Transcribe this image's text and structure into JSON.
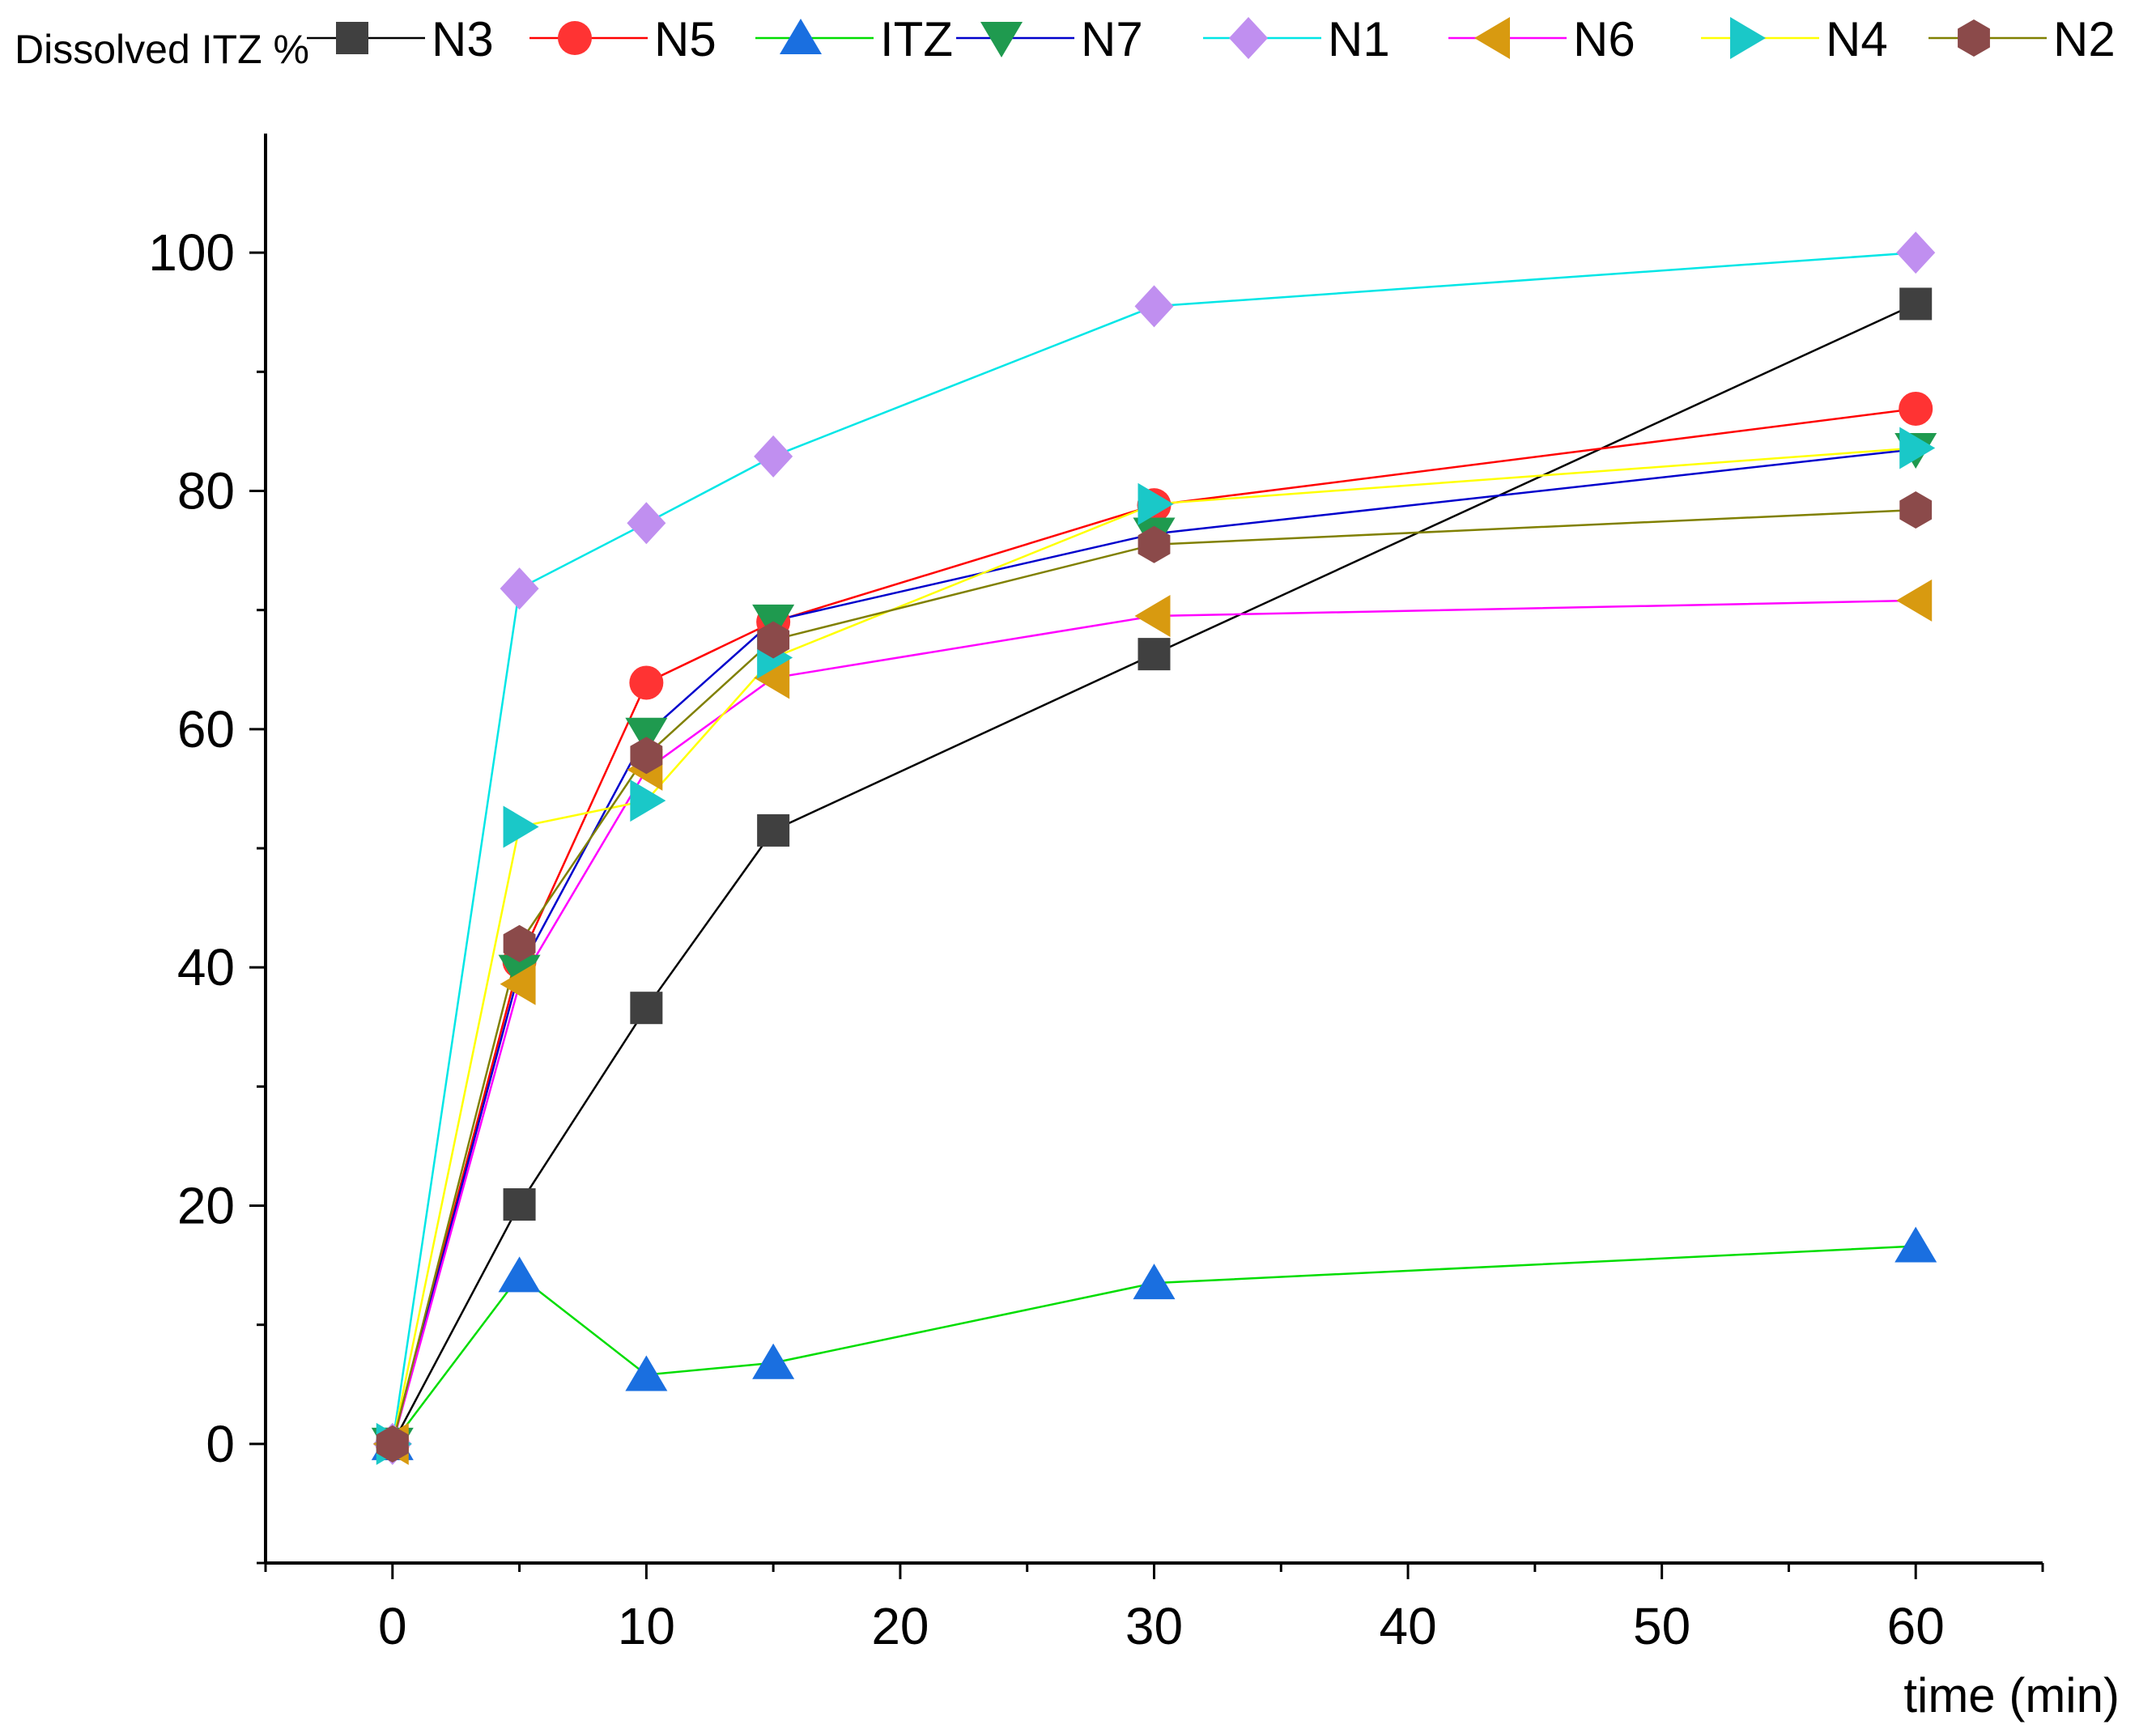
{
  "chart_data": {
    "type": "line",
    "title": "",
    "ylabel": "Dissolved ITZ %",
    "xlabel": "time (min)",
    "xlim": [
      -5,
      65
    ],
    "ylim": [
      -10,
      110
    ],
    "xticks": [
      0,
      10,
      20,
      30,
      40,
      50,
      60
    ],
    "yticks": [
      0,
      20,
      40,
      60,
      80,
      100
    ],
    "x_tick_labels": [
      "0",
      "10",
      "20",
      "30",
      "40",
      "50",
      "60"
    ],
    "y_tick_labels": [
      "0",
      "20",
      "40",
      "60",
      "80",
      "100"
    ],
    "grid": false,
    "legend_position": "top",
    "x": [
      0,
      5,
      10,
      15,
      30,
      60
    ],
    "series": [
      {
        "name": "N3",
        "line_color": "#000000",
        "marker_color": "#404040",
        "marker": "square",
        "values": [
          0,
          20.1,
          36.6,
          51.5,
          66.3,
          95.7
        ]
      },
      {
        "name": "N5",
        "line_color": "#ff0000",
        "marker_color": "#ff3333",
        "marker": "circle",
        "values": [
          0,
          40.5,
          63.9,
          69.0,
          78.8,
          86.9
        ]
      },
      {
        "name": "ITZ",
        "line_color": "#00dd00",
        "marker_color": "#1a6fe0",
        "marker": "triangle-up",
        "values": [
          0,
          14.1,
          5.8,
          6.8,
          13.5,
          16.6
        ]
      },
      {
        "name": "N7",
        "line_color": "#0000cc",
        "marker_color": "#1f9a4f",
        "marker": "triangle-down",
        "values": [
          0,
          39.7,
          59.6,
          69.1,
          76.4,
          83.5
        ]
      },
      {
        "name": "N1",
        "line_color": "#00e6e6",
        "marker_color": "#c08ff0",
        "marker": "diamond",
        "values": [
          0,
          71.8,
          77.3,
          82.9,
          95.5,
          100.0
        ]
      },
      {
        "name": "N6",
        "line_color": "#ff00ff",
        "marker_color": "#d89a10",
        "marker": "triangle-left",
        "values": [
          0,
          38.6,
          56.6,
          64.3,
          69.5,
          70.8
        ]
      },
      {
        "name": "N4",
        "line_color": "#ffff00",
        "marker_color": "#1ac8c8",
        "marker": "triangle-right",
        "values": [
          0,
          51.8,
          54.0,
          66.0,
          78.9,
          83.6
        ]
      },
      {
        "name": "N2",
        "line_color": "#808000",
        "marker_color": "#8b4a4a",
        "marker": "hexagon",
        "values": [
          0,
          42.0,
          57.8,
          67.5,
          75.5,
          78.4
        ]
      }
    ]
  }
}
